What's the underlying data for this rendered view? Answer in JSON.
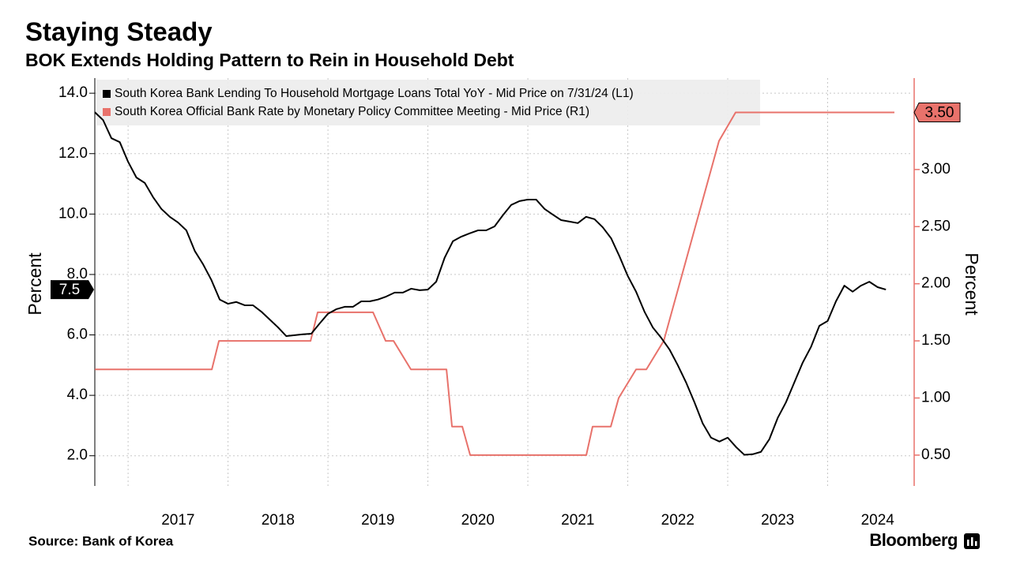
{
  "chart_data": {
    "type": "line",
    "title": "Staying Steady",
    "subtitle": "BOK Extends Holding Pattern to Rein in Household Debt",
    "source": "Source: Bank of Korea",
    "brand": "Bloomberg",
    "ylabel": "Percent",
    "y2label": "Percent",
    "xlim": [
      2016.667,
      2024.85
    ],
    "xticks": [
      {
        "value": 2017,
        "label": "2017"
      },
      {
        "value": 2018,
        "label": "2018"
      },
      {
        "value": 2019,
        "label": "2019"
      },
      {
        "value": 2020,
        "label": "2020"
      },
      {
        "value": 2021,
        "label": "2021"
      },
      {
        "value": 2022,
        "label": "2022"
      },
      {
        "value": 2023,
        "label": "2023"
      },
      {
        "value": 2024,
        "label": "2024"
      }
    ],
    "ylim": [
      1.0,
      14.5
    ],
    "yticks": [
      {
        "value": 2,
        "label": "2.0"
      },
      {
        "value": 4,
        "label": "4.0"
      },
      {
        "value": 6,
        "label": "6.0"
      },
      {
        "value": 8,
        "label": "8.0"
      },
      {
        "value": 10,
        "label": "10.0"
      },
      {
        "value": 12,
        "label": "12.0"
      },
      {
        "value": 14,
        "label": "14.0"
      }
    ],
    "y2lim": [
      0.23,
      3.8
    ],
    "y2ticks": [
      {
        "value": 0.5,
        "label": "0.50"
      },
      {
        "value": 1,
        "label": "1.00"
      },
      {
        "value": 1.5,
        "label": "1.50"
      },
      {
        "value": 2,
        "label": "2.00"
      },
      {
        "value": 2.5,
        "label": "2.50"
      },
      {
        "value": 3,
        "label": "3.00"
      }
    ],
    "grid": true,
    "legend": "top-left",
    "series": [
      {
        "name": "South Korea Bank Lending To Household Mortgage Loans Total YoY - Mid Price on 7/31/24 (L1)",
        "color": "#000000",
        "axis": "y",
        "x": [
          2016.667,
          2016.75,
          2016.833,
          2016.917,
          2017.0,
          2017.083,
          2017.167,
          2017.25,
          2017.333,
          2017.417,
          2017.5,
          2017.583,
          2017.667,
          2017.75,
          2017.833,
          2017.917,
          2018.0,
          2018.083,
          2018.167,
          2018.25,
          2018.333,
          2018.417,
          2018.5,
          2018.583,
          2018.667,
          2018.75,
          2018.833,
          2018.917,
          2019.0,
          2019.083,
          2019.167,
          2019.25,
          2019.333,
          2019.417,
          2019.5,
          2019.583,
          2019.667,
          2019.75,
          2019.833,
          2019.917,
          2020.0,
          2020.083,
          2020.167,
          2020.25,
          2020.333,
          2020.417,
          2020.5,
          2020.583,
          2020.667,
          2020.75,
          2020.833,
          2020.917,
          2021.0,
          2021.083,
          2021.167,
          2021.25,
          2021.333,
          2021.417,
          2021.5,
          2021.583,
          2021.667,
          2021.75,
          2021.833,
          2021.917,
          2022.0,
          2022.083,
          2022.167,
          2022.25,
          2022.333,
          2022.417,
          2022.5,
          2022.583,
          2022.667,
          2022.75,
          2022.833,
          2022.917,
          2023.0,
          2023.083,
          2023.167,
          2023.25,
          2023.333,
          2023.417,
          2023.5,
          2023.583,
          2023.667,
          2023.75,
          2023.833,
          2023.917,
          2024.0,
          2024.083,
          2024.167,
          2024.25,
          2024.333,
          2024.417,
          2024.5,
          2024.583
        ],
        "values": [
          13.37,
          13.11,
          12.51,
          12.38,
          11.73,
          11.21,
          11.03,
          10.56,
          10.17,
          9.91,
          9.72,
          9.46,
          8.78,
          8.34,
          7.82,
          7.17,
          7.03,
          7.09,
          6.98,
          6.98,
          6.77,
          6.51,
          6.25,
          5.96,
          5.99,
          6.02,
          6.04,
          6.38,
          6.7,
          6.85,
          6.93,
          6.93,
          7.11,
          7.11,
          7.17,
          7.27,
          7.4,
          7.4,
          7.53,
          7.48,
          7.5,
          7.76,
          8.55,
          9.1,
          9.25,
          9.36,
          9.46,
          9.46,
          9.59,
          9.96,
          10.3,
          10.43,
          10.48,
          10.48,
          10.17,
          9.98,
          9.8,
          9.75,
          9.7,
          9.91,
          9.83,
          9.56,
          9.2,
          8.6,
          7.95,
          7.43,
          6.77,
          6.25,
          5.91,
          5.52,
          5.0,
          4.43,
          3.77,
          3.07,
          2.6,
          2.47,
          2.6,
          2.29,
          2.03,
          2.05,
          2.13,
          2.55,
          3.25,
          3.77,
          4.43,
          5.08,
          5.6,
          6.3,
          6.46,
          7.11,
          7.63,
          7.43,
          7.63,
          7.76,
          7.58,
          7.5
        ],
        "value_labels": {
          "95": "7.5"
        }
      },
      {
        "name": "South Korea Official Bank Rate by Monetary Policy Committee Meeting - Mid Price (R1)",
        "color": "#e8726b",
        "axis": "y2",
        "x": [
          2016.668,
          2017.838,
          2017.909,
          2018.826,
          2018.897,
          2019.451,
          2019.577,
          2019.656,
          2019.83,
          2020.186,
          2020.241,
          2020.344,
          2020.423,
          2021.585,
          2021.648,
          2021.83,
          2021.909,
          2022.083,
          2022.186,
          2022.36,
          2022.439,
          2022.597,
          2022.913,
          2023.079,
          2024.668
        ],
        "values": [
          1.25,
          1.25,
          1.5,
          1.5,
          1.75,
          1.75,
          1.5,
          1.5,
          1.25,
          1.25,
          0.75,
          0.75,
          0.5,
          0.5,
          0.75,
          0.75,
          1.0,
          1.25,
          1.25,
          1.5,
          1.75,
          2.25,
          3.25,
          3.5,
          3.5
        ],
        "value_labels": {
          "24": "3.50"
        }
      }
    ]
  }
}
